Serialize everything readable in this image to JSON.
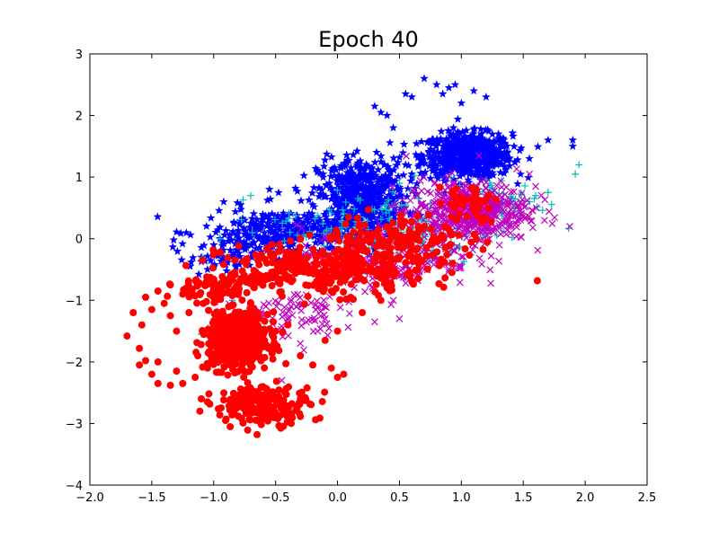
{
  "chart_data": {
    "type": "scatter",
    "title": "Epoch 40",
    "xlabel": "",
    "ylabel": "",
    "xlim": [
      -2.0,
      2.5
    ],
    "ylim": [
      -4,
      3
    ],
    "xticks": [
      -2.0,
      -1.5,
      -1.0,
      -0.5,
      0.0,
      0.5,
      1.0,
      1.5,
      2.0,
      2.5
    ],
    "xtick_labels": [
      "−2.0",
      "−1.5",
      "−1.0",
      "−0.5",
      "0.0",
      "0.5",
      "1.0",
      "1.5",
      "2.0",
      "2.5"
    ],
    "yticks": [
      3,
      2,
      1,
      0,
      -1,
      -2,
      -3,
      -4
    ],
    "ytick_labels": [
      "3",
      "2",
      "1",
      "0",
      "−1",
      "−2",
      "−3",
      "−4"
    ],
    "grid": false,
    "legend": "none",
    "series": [
      {
        "marker": "star",
        "color": "#0000ff",
        "clusters": [
          {
            "center": [
              1.05,
              1.35
            ],
            "spread": [
              0.18,
              0.18
            ],
            "n": 650
          },
          {
            "center": [
              0.2,
              0.7
            ],
            "spread": [
              0.18,
              0.3
            ],
            "n": 500
          },
          {
            "center": [
              -0.4,
              0.1
            ],
            "spread": [
              0.35,
              0.2
            ],
            "n": 350
          },
          {
            "center": [
              -0.9,
              -0.3
            ],
            "spread": [
              0.15,
              0.15
            ],
            "n": 60
          }
        ],
        "points": [
          [
            0.7,
            2.6
          ],
          [
            0.8,
            2.5
          ],
          [
            0.9,
            2.45
          ],
          [
            0.6,
            2.3
          ],
          [
            1.1,
            2.4
          ],
          [
            1.2,
            2.3
          ],
          [
            0.55,
            2.35
          ],
          [
            1.0,
            2.2
          ],
          [
            0.95,
            2.5
          ],
          [
            0.85,
            2.35
          ],
          [
            0.3,
            2.15
          ],
          [
            0.35,
            2.05
          ],
          [
            0.45,
            1.8
          ],
          [
            0.4,
            2.0
          ],
          [
            0.55,
            1.2
          ],
          [
            0.6,
            1.05
          ],
          [
            1.9,
            1.6
          ],
          [
            1.7,
            1.6
          ],
          [
            1.9,
            1.5
          ],
          [
            1.3,
            1.7
          ],
          [
            1.35,
            1.55
          ],
          [
            -0.55,
            0.8
          ],
          [
            -1.0,
            -0.1
          ],
          [
            -1.05,
            -0.5
          ],
          [
            -0.95,
            0.0
          ],
          [
            -1.1,
            -0.3
          ],
          [
            -0.7,
            0.25
          ],
          [
            -0.8,
            -0.05
          ]
        ]
      },
      {
        "marker": "plus",
        "color": "#00bfbf",
        "clusters": [
          {
            "center": [
              0.4,
              0.15
            ],
            "spread": [
              0.45,
              0.3
            ],
            "n": 200
          },
          {
            "center": [
              1.3,
              0.6
            ],
            "spread": [
              0.2,
              0.2
            ],
            "n": 60
          }
        ],
        "points": [
          [
            1.95,
            1.2
          ],
          [
            1.92,
            1.05
          ],
          [
            1.7,
            0.75
          ],
          [
            1.6,
            0.7
          ],
          [
            1.55,
            0.6
          ],
          [
            -1.05,
            -1.45
          ],
          [
            -1.1,
            -1.55
          ],
          [
            -1.0,
            -1.3
          ],
          [
            -0.98,
            -1.6
          ],
          [
            -1.0,
            -0.25
          ],
          [
            -0.95,
            0.0
          ],
          [
            0.5,
            0.9
          ],
          [
            0.55,
            0.55
          ],
          [
            -0.85,
            -1.0
          ]
        ]
      },
      {
        "marker": "x",
        "color": "#bf00bf",
        "clusters": [
          {
            "center": [
              1.05,
              0.45
            ],
            "spread": [
              0.25,
              0.25
            ],
            "n": 500
          },
          {
            "center": [
              0.4,
              -0.3
            ],
            "spread": [
              0.35,
              0.25
            ],
            "n": 220
          },
          {
            "center": [
              -0.4,
              -1.2
            ],
            "spread": [
              0.2,
              0.2
            ],
            "n": 80
          }
        ],
        "points": [
          [
            1.55,
            1.05
          ],
          [
            1.6,
            0.85
          ],
          [
            1.45,
            0.3
          ],
          [
            0.5,
            -1.3
          ],
          [
            0.3,
            -1.35
          ],
          [
            -0.3,
            -1.7
          ],
          [
            -0.45,
            -2.3
          ],
          [
            0.9,
            -0.4
          ],
          [
            0.7,
            -0.5
          ],
          [
            0.45,
            -1.0
          ],
          [
            -0.1,
            -1.3
          ]
        ]
      },
      {
        "marker": "circle",
        "color": "#ff0000",
        "clusters": [
          {
            "center": [
              -0.8,
              -1.65
            ],
            "spread": [
              0.12,
              0.22
            ],
            "n": 650
          },
          {
            "center": [
              -0.1,
              -0.5
            ],
            "spread": [
              0.4,
              0.2
            ],
            "n": 350
          },
          {
            "center": [
              -0.6,
              -2.7
            ],
            "spread": [
              0.2,
              0.15
            ],
            "n": 200
          },
          {
            "center": [
              0.5,
              0.0
            ],
            "spread": [
              0.3,
              0.2
            ],
            "n": 140
          },
          {
            "center": [
              1.05,
              0.6
            ],
            "spread": [
              0.12,
              0.15
            ],
            "n": 40
          },
          {
            "center": [
              -1.0,
              -0.8
            ],
            "spread": [
              0.18,
              0.12
            ],
            "n": 80
          }
        ],
        "points": [
          [
            -1.7,
            -1.58
          ],
          [
            -1.6,
            -1.78
          ],
          [
            -1.55,
            -1.98
          ],
          [
            -1.5,
            -2.2
          ],
          [
            -1.45,
            -2.35
          ],
          [
            -1.35,
            -2.38
          ],
          [
            -1.25,
            -2.35
          ],
          [
            -1.15,
            -2.25
          ],
          [
            -1.05,
            -2.1
          ],
          [
            -1.58,
            -1.4
          ],
          [
            -1.65,
            -1.2
          ],
          [
            -1.55,
            -0.95
          ],
          [
            -1.45,
            -0.85
          ],
          [
            -1.4,
            -1.05
          ],
          [
            -1.5,
            -1.15
          ],
          [
            -1.35,
            -1.25
          ],
          [
            -1.3,
            -1.5
          ],
          [
            -1.25,
            -0.9
          ],
          [
            -1.2,
            -1.2
          ],
          [
            -1.35,
            -0.75
          ],
          [
            -1.6,
            -2.05
          ],
          [
            -1.45,
            -2.0
          ],
          [
            -1.3,
            -2.15
          ],
          [
            -1.1,
            -2.6
          ],
          [
            -1.05,
            -2.65
          ],
          [
            -0.65,
            -3.18
          ],
          [
            -0.3,
            -2.6
          ],
          [
            0.0,
            -2.25
          ],
          [
            0.05,
            -2.2
          ],
          [
            -0.05,
            -2.1
          ],
          [
            -0.2,
            -2.05
          ],
          [
            -0.3,
            -1.9
          ],
          [
            -0.1,
            -1.65
          ],
          [
            0.0,
            -1.5
          ],
          [
            0.2,
            -1.2
          ],
          [
            0.35,
            -1.0
          ],
          [
            -0.5,
            -1.5
          ],
          [
            -0.4,
            -1.4
          ],
          [
            0.4,
            -0.8
          ],
          [
            0.6,
            -0.7
          ],
          [
            0.65,
            -0.5
          ],
          [
            0.7,
            0.2
          ],
          [
            0.8,
            0.0
          ]
        ]
      }
    ]
  }
}
